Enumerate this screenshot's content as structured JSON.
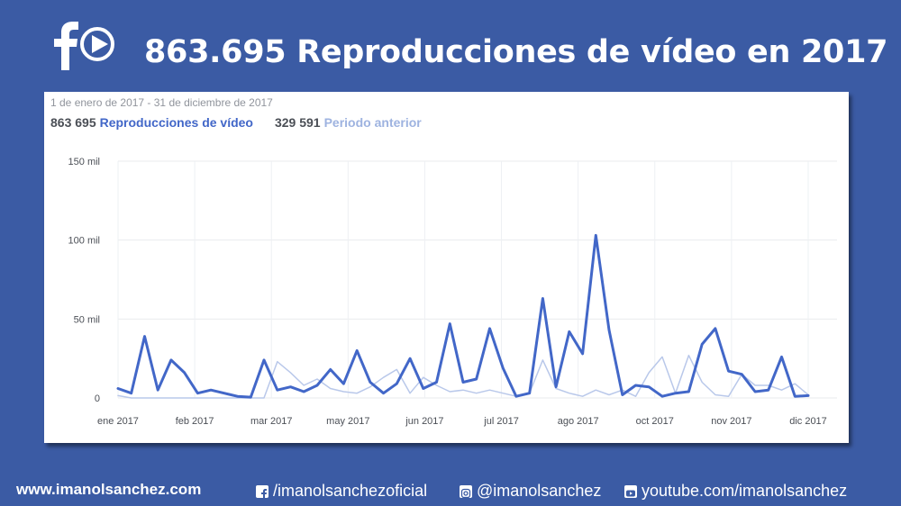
{
  "header": {
    "title": "863.695 Reproducciones de vídeo en 2017"
  },
  "card": {
    "date_range": "1 de enero de 2017 - 31 de diciembre de 2017",
    "current_total": "863 695",
    "current_label": "Reproducciones de vídeo",
    "previous_total": "329 591",
    "previous_label": "Periodo anterior"
  },
  "footer": {
    "website": "www.imanolsanchez.com",
    "facebook": "/imanolsanchezoficial",
    "instagram": "@imanolsanchez",
    "youtube": "youtube.com/imanolsanchez"
  },
  "colors": {
    "background": "#3b5ba4",
    "current_series": "#4267c8",
    "previous_series": "#b9c8ea"
  },
  "icons": [
    "facebook-play-logo-icon",
    "facebook-icon",
    "instagram-icon",
    "youtube-icon"
  ],
  "chart_data": {
    "type": "line",
    "title": "",
    "xlabel": "",
    "ylabel": "",
    "ylim": [
      0,
      150000
    ],
    "y_ticks": [
      0,
      50000,
      100000,
      150000
    ],
    "y_tick_labels": [
      "0",
      "50 mil",
      "100 mil",
      "150 mil"
    ],
    "x_ticks": [
      "ene 2017",
      "feb 2017",
      "mar 2017",
      "may 2017",
      "jun 2017",
      "jul 2017",
      "ago 2017",
      "oct 2017",
      "nov 2017",
      "dic 2017"
    ],
    "grid": true,
    "legend": "top-left",
    "series": [
      {
        "name": "Reproducciones de vídeo",
        "color": "#4267c8",
        "values": [
          6000,
          3000,
          39000,
          5000,
          24000,
          16000,
          3000,
          5000,
          3000,
          1000,
          500,
          24000,
          5000,
          7000,
          4000,
          8000,
          18000,
          9000,
          30000,
          10000,
          3000,
          9000,
          25000,
          6000,
          10000,
          47000,
          10000,
          12000,
          44000,
          19000,
          1000,
          3000,
          63000,
          7000,
          42000,
          28000,
          103000,
          43000,
          2000,
          8000,
          7000,
          1000,
          3000,
          4000,
          34000,
          44000,
          17000,
          15000,
          4000,
          5000,
          26000,
          1000,
          1500
        ]
      },
      {
        "name": "Periodo anterior",
        "color": "#b9c8ea",
        "values": [
          1500,
          0,
          0,
          0,
          0,
          0,
          0,
          0,
          0,
          0,
          0,
          0,
          23000,
          16000,
          8000,
          12000,
          6000,
          4000,
          3000,
          7000,
          13000,
          18000,
          3000,
          13000,
          8000,
          4000,
          5000,
          3000,
          5000,
          3000,
          1000,
          3000,
          24000,
          6000,
          3000,
          1000,
          5000,
          2000,
          5000,
          1000,
          16000,
          26000,
          3000,
          27000,
          10000,
          2000,
          1000,
          15000,
          8000,
          8000,
          5000,
          9000,
          2000
        ]
      }
    ]
  }
}
